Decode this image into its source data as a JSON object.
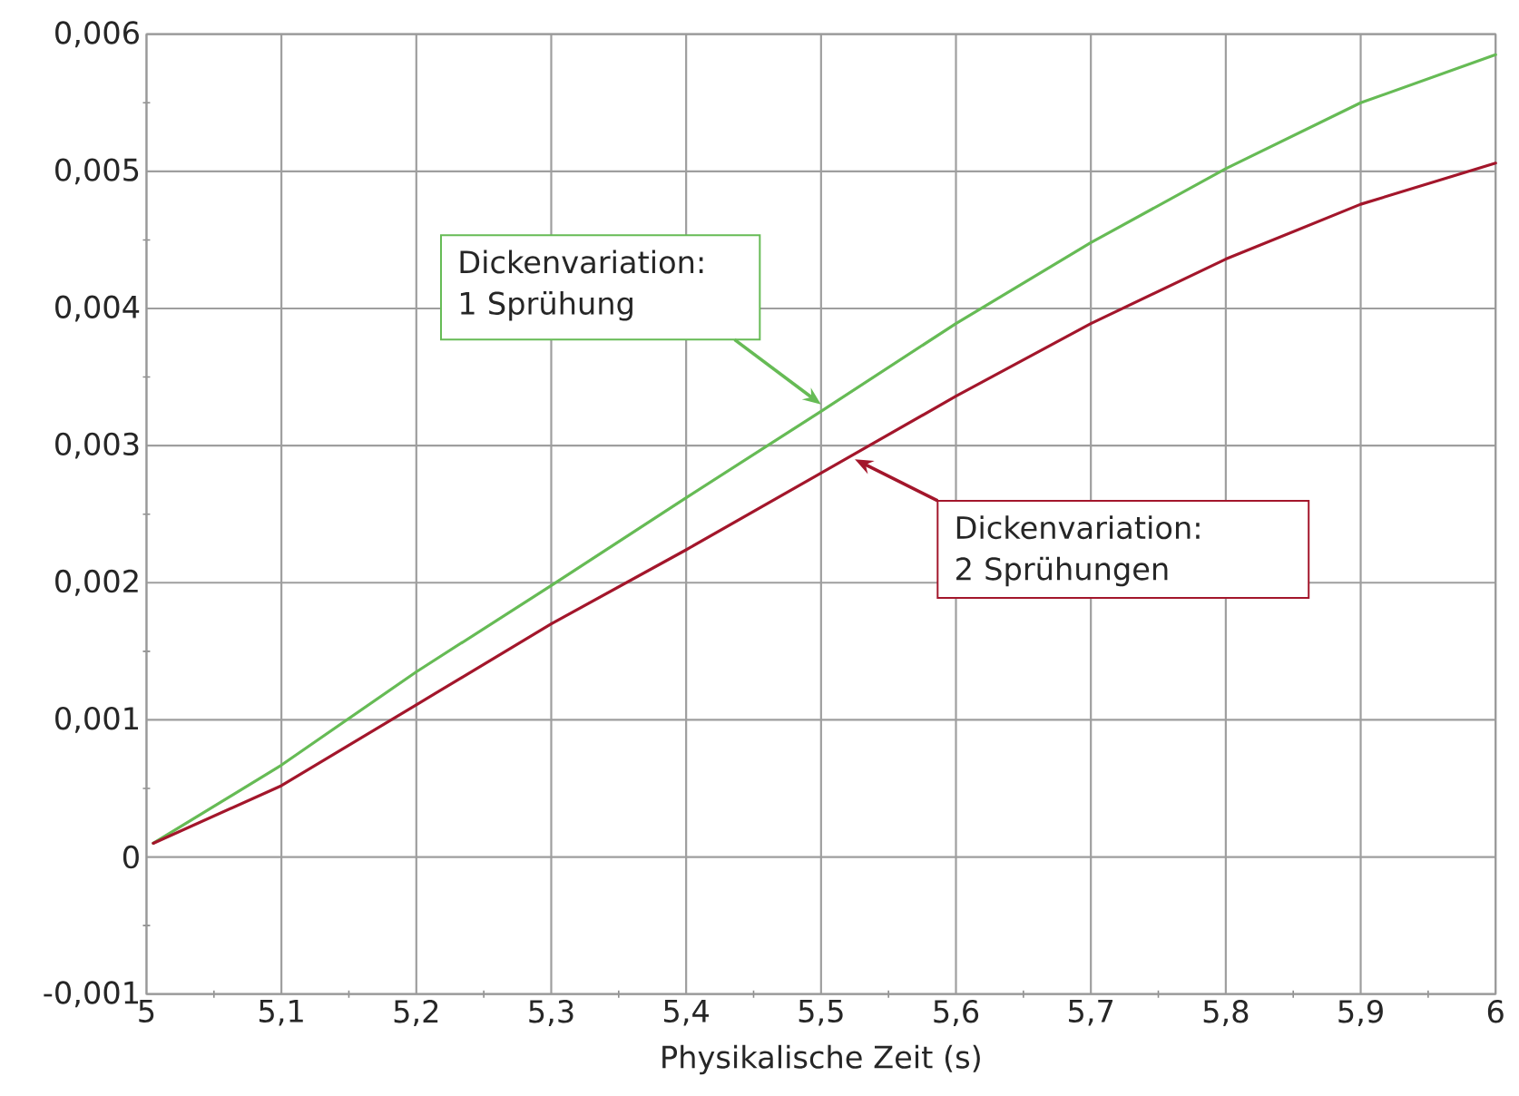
{
  "chart_data": {
    "type": "line",
    "xlabel": "Physikalische Zeit (s)",
    "x": [
      5.005,
      5.1,
      5.2,
      5.3,
      5.4,
      5.5,
      5.6,
      5.7,
      5.8,
      5.9,
      6.0
    ],
    "series": [
      {
        "color": "#66bb55",
        "values": [
          0.0001,
          0.00067,
          0.00135,
          0.00198,
          0.00262,
          0.00325,
          0.00389,
          0.00448,
          0.00502,
          0.0055,
          0.00585
        ]
      },
      {
        "color": "#a3162b",
        "values": [
          0.0001,
          0.00052,
          0.00111,
          0.0017,
          0.00224,
          0.0028,
          0.00336,
          0.00389,
          0.00436,
          0.00476,
          0.00506
        ]
      }
    ],
    "xlim": [
      5,
      6
    ],
    "xticks": [
      5,
      {
        "value": 5.1,
        "label": "5,1"
      },
      {
        "value": 5.2,
        "label": "5,2"
      },
      {
        "value": 5.3,
        "label": "5,3"
      },
      {
        "value": 5.4,
        "label": "5,4"
      },
      {
        "value": 5.5,
        "label": "5,5"
      },
      {
        "value": 5.6,
        "label": "5,6"
      },
      {
        "value": 5.7,
        "label": "5,7"
      },
      {
        "value": 5.8,
        "label": "5,8"
      },
      {
        "value": 5.9,
        "label": "5,9"
      },
      6
    ],
    "ylim": [
      -0.001,
      0.006
    ],
    "yticks": [
      {
        "value": -0.001,
        "label": "-0,001"
      },
      0,
      {
        "value": 0.001,
        "label": "0,001"
      },
      {
        "value": 0.002,
        "label": "0,002"
      },
      {
        "value": 0.003,
        "label": "0,003"
      },
      {
        "value": 0.004,
        "label": "0,004"
      },
      {
        "value": 0.005,
        "label": "0,005"
      },
      {
        "value": 0.006,
        "label": "0,006"
      }
    ],
    "grid": true,
    "annotations": [
      {
        "text": "Dickenvariation: 1 Sprühung",
        "x": 5.5,
        "y": 0.0033
      },
      {
        "text": "Dickenvariation: 2 Sprühungen",
        "x": 5.525,
        "y": 0.0029
      }
    ]
  }
}
